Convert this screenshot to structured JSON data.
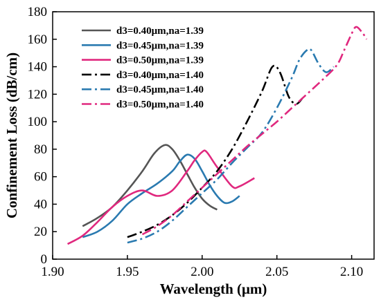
{
  "chart_data": {
    "type": "line",
    "xlabel": "Wavelength (μm)",
    "ylabel": "Confinement Loss (dB/cm)",
    "xlim": [
      1.9,
      2.115
    ],
    "ylim": [
      0,
      180
    ],
    "xticks": [
      "1.90",
      "1.95",
      "2.00",
      "2.05",
      "2.10"
    ],
    "yticks": [
      "0",
      "20",
      "40",
      "60",
      "80",
      "100",
      "120",
      "140",
      "160",
      "180"
    ],
    "grid": false,
    "legend_position": "top-left",
    "series": [
      {
        "name": "d3=0.40μm,na=1.39",
        "color": "#555555",
        "dash": "solid",
        "x": [
          1.92,
          1.93,
          1.94,
          1.95,
          1.96,
          1.968,
          1.975,
          1.98,
          1.985,
          1.99,
          1.995,
          2.0,
          2.005,
          2.01
        ],
        "y": [
          24,
          30,
          38,
          50,
          64,
          77,
          83,
          80,
          72,
          62,
          52,
          44,
          39,
          36
        ]
      },
      {
        "name": "d3=0.45μm,na=1.39",
        "color": "#2a7ab0",
        "dash": "solid",
        "x": [
          1.92,
          1.93,
          1.94,
          1.95,
          1.96,
          1.97,
          1.98,
          1.985,
          1.99,
          1.995,
          2.0,
          2.005,
          2.01,
          2.015,
          2.02,
          2.025
        ],
        "y": [
          16,
          20,
          28,
          40,
          48,
          55,
          64,
          71,
          76,
          73,
          64,
          54,
          46,
          41,
          42,
          46
        ]
      },
      {
        "name": "d3=0.50μm,na=1.39",
        "color": "#e0287e",
        "dash": "solid",
        "x": [
          1.91,
          1.92,
          1.93,
          1.94,
          1.95,
          1.96,
          1.97,
          1.98,
          1.99,
          1.995,
          2.0,
          2.003,
          2.01,
          2.02,
          2.025,
          2.035
        ],
        "y": [
          11,
          17,
          27,
          38,
          46,
          50,
          46,
          50,
          64,
          72,
          78,
          78,
          67,
          53,
          53,
          59
        ]
      },
      {
        "name": "d3=0.40μm,na=1.40",
        "color": "#000000",
        "dash": "dashdot",
        "x": [
          1.95,
          1.96,
          1.97,
          1.98,
          1.99,
          2.0,
          2.01,
          2.02,
          2.03,
          2.04,
          2.047,
          2.052,
          2.058,
          2.063,
          2.067
        ],
        "y": [
          16,
          20,
          25,
          32,
          41,
          52,
          64,
          80,
          100,
          122,
          140,
          136,
          118,
          113,
          117
        ]
      },
      {
        "name": "d3=0.45μm,na=1.40",
        "color": "#2a7ab0",
        "dash": "dashdot",
        "x": [
          1.95,
          1.96,
          1.97,
          1.98,
          1.99,
          2.0,
          2.01,
          2.02,
          2.03,
          2.04,
          2.05,
          2.06,
          2.065,
          2.07,
          2.073,
          2.078,
          2.083,
          2.088
        ],
        "y": [
          12,
          15,
          20,
          28,
          38,
          48,
          58,
          70,
          81,
          92,
          110,
          132,
          145,
          152,
          152,
          142,
          136,
          140
        ]
      },
      {
        "name": "d3=0.50μm,na=1.40",
        "color": "#e0287e",
        "dash": "dashdot",
        "x": [
          1.96,
          1.97,
          1.98,
          1.99,
          2.0,
          2.01,
          2.02,
          2.03,
          2.04,
          2.05,
          2.06,
          2.07,
          2.08,
          2.09,
          2.095,
          2.1,
          2.103,
          2.107,
          2.11
        ],
        "y": [
          18,
          24,
          32,
          42,
          52,
          62,
          72,
          82,
          91,
          100,
          110,
          120,
          130,
          141,
          152,
          164,
          169,
          165,
          160
        ]
      }
    ]
  }
}
